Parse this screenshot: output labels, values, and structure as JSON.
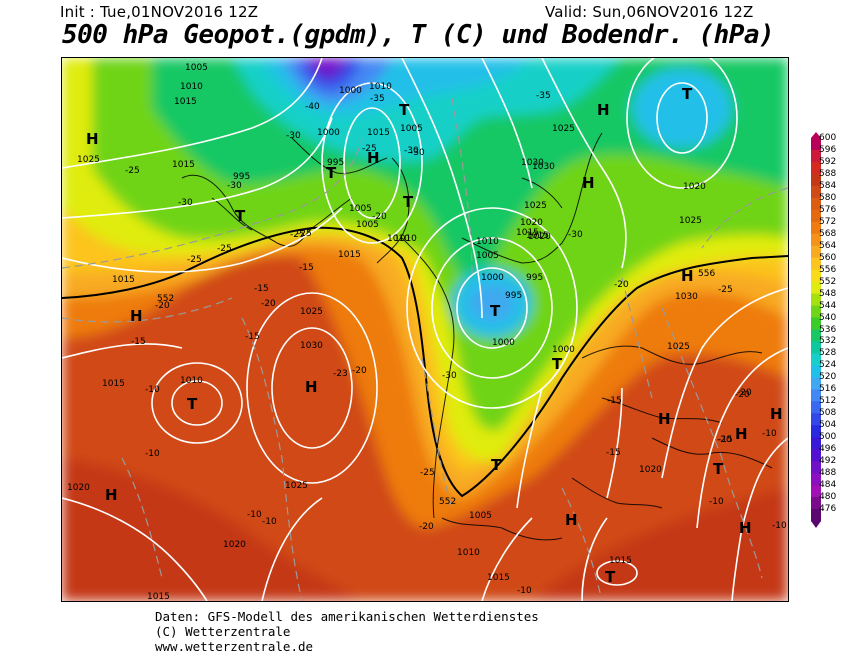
{
  "header": {
    "init": "Init : Tue,01NOV2016 12Z",
    "valid": "Valid: Sun,06NOV2016 12Z",
    "title": "500 hPa Geopot.(gpdm), T (C) und Bodendr. (hPa)"
  },
  "footer": {
    "line1": "Daten: GFS-Modell des amerikanischen Wetterdienstes",
    "line2": "(C) Wetterzentrale",
    "line3": "www.wetterzentrale.de"
  },
  "legend": {
    "values": [
      "600",
      "596",
      "592",
      "588",
      "584",
      "580",
      "576",
      "572",
      "568",
      "564",
      "560",
      "556",
      "552",
      "548",
      "544",
      "540",
      "536",
      "532",
      "528",
      "524",
      "520",
      "516",
      "512",
      "508",
      "504",
      "500",
      "496",
      "492",
      "488",
      "484",
      "480",
      "476"
    ],
    "colors": [
      "#b8005a",
      "#cc1a3a",
      "#d42a20",
      "#c43818",
      "#d04a18",
      "#dc5c14",
      "#e46a10",
      "#ee7c10",
      "#f4921a",
      "#f8aa20",
      "#fcc41c",
      "#f8dc18",
      "#e0ec10",
      "#a6e010",
      "#70d418",
      "#3ccc2a",
      "#18c864",
      "#10c8a0",
      "#18d0c8",
      "#20c0e8",
      "#40a8f0",
      "#4488f4",
      "#3a68f0",
      "#3448e8",
      "#2a2ae0",
      "#3a18d8",
      "#5410d0",
      "#7010c8",
      "#8a10c0",
      "#a010b4",
      "#7a0c8c",
      "#5a0870"
    ]
  },
  "map": {
    "pressure_systems": [
      {
        "type": "H",
        "label": "H"
      },
      {
        "type": "H",
        "label": "H"
      },
      {
        "type": "H",
        "label": "H"
      },
      {
        "type": "H",
        "label": "H"
      },
      {
        "type": "H",
        "label": "H"
      },
      {
        "type": "H",
        "label": "H"
      },
      {
        "type": "H",
        "label": "H"
      },
      {
        "type": "H",
        "label": "H"
      },
      {
        "type": "H",
        "label": "H"
      },
      {
        "type": "H",
        "label": "H"
      },
      {
        "type": "H",
        "label": "H"
      },
      {
        "type": "H",
        "label": "H"
      },
      {
        "type": "H",
        "label": "H"
      },
      {
        "type": "T",
        "label": "T"
      },
      {
        "type": "T",
        "label": "T"
      },
      {
        "type": "T",
        "label": "T"
      },
      {
        "type": "T",
        "label": "T"
      },
      {
        "type": "T",
        "label": "T"
      },
      {
        "type": "T",
        "label": "T"
      },
      {
        "type": "T",
        "label": "T"
      },
      {
        "type": "T",
        "label": "T"
      },
      {
        "type": "T",
        "label": "T"
      },
      {
        "type": "T",
        "label": "T"
      },
      {
        "type": "T",
        "label": "T"
      }
    ],
    "isobar_labels": [
      "1005",
      "1010",
      "1015",
      "1000",
      "1010",
      "1015",
      "1005",
      "1025",
      "1015",
      "995",
      "1000",
      "995",
      "1005",
      "1005",
      "1010",
      "1015",
      "1025",
      "1030",
      "1030",
      "1020",
      "1025",
      "1025",
      "1020",
      "1015",
      "1010",
      "1005",
      "995",
      "1000",
      "995",
      "1000",
      "1015",
      "1010",
      "1020",
      "1025",
      "1030",
      "1030",
      "1025",
      "1000",
      "1015",
      "1010",
      "1020",
      "1020",
      "1020",
      "1025",
      "1005",
      "1010",
      "1015",
      "1015",
      "1015",
      "1015"
    ],
    "temperature_labels": [
      "-40",
      "-35",
      "-30",
      "-25",
      "-30",
      "-35",
      "-25",
      "-30",
      "-30",
      "-25",
      "-25",
      "-25",
      "-20",
      "-15",
      "-25",
      "-20",
      "-15",
      "-15",
      "-20",
      "-15",
      "-10",
      "-23",
      "-20",
      "-15",
      "-30",
      "-25",
      "-20",
      "-20",
      "-20",
      "-30",
      "-25",
      "-15",
      "-15",
      "-20",
      "-10",
      "-10",
      "-10",
      "-10",
      "-10",
      "-10",
      "-20",
      "-10",
      "-30"
    ],
    "geopotential_labels": [
      "552",
      "552",
      "556"
    ]
  }
}
